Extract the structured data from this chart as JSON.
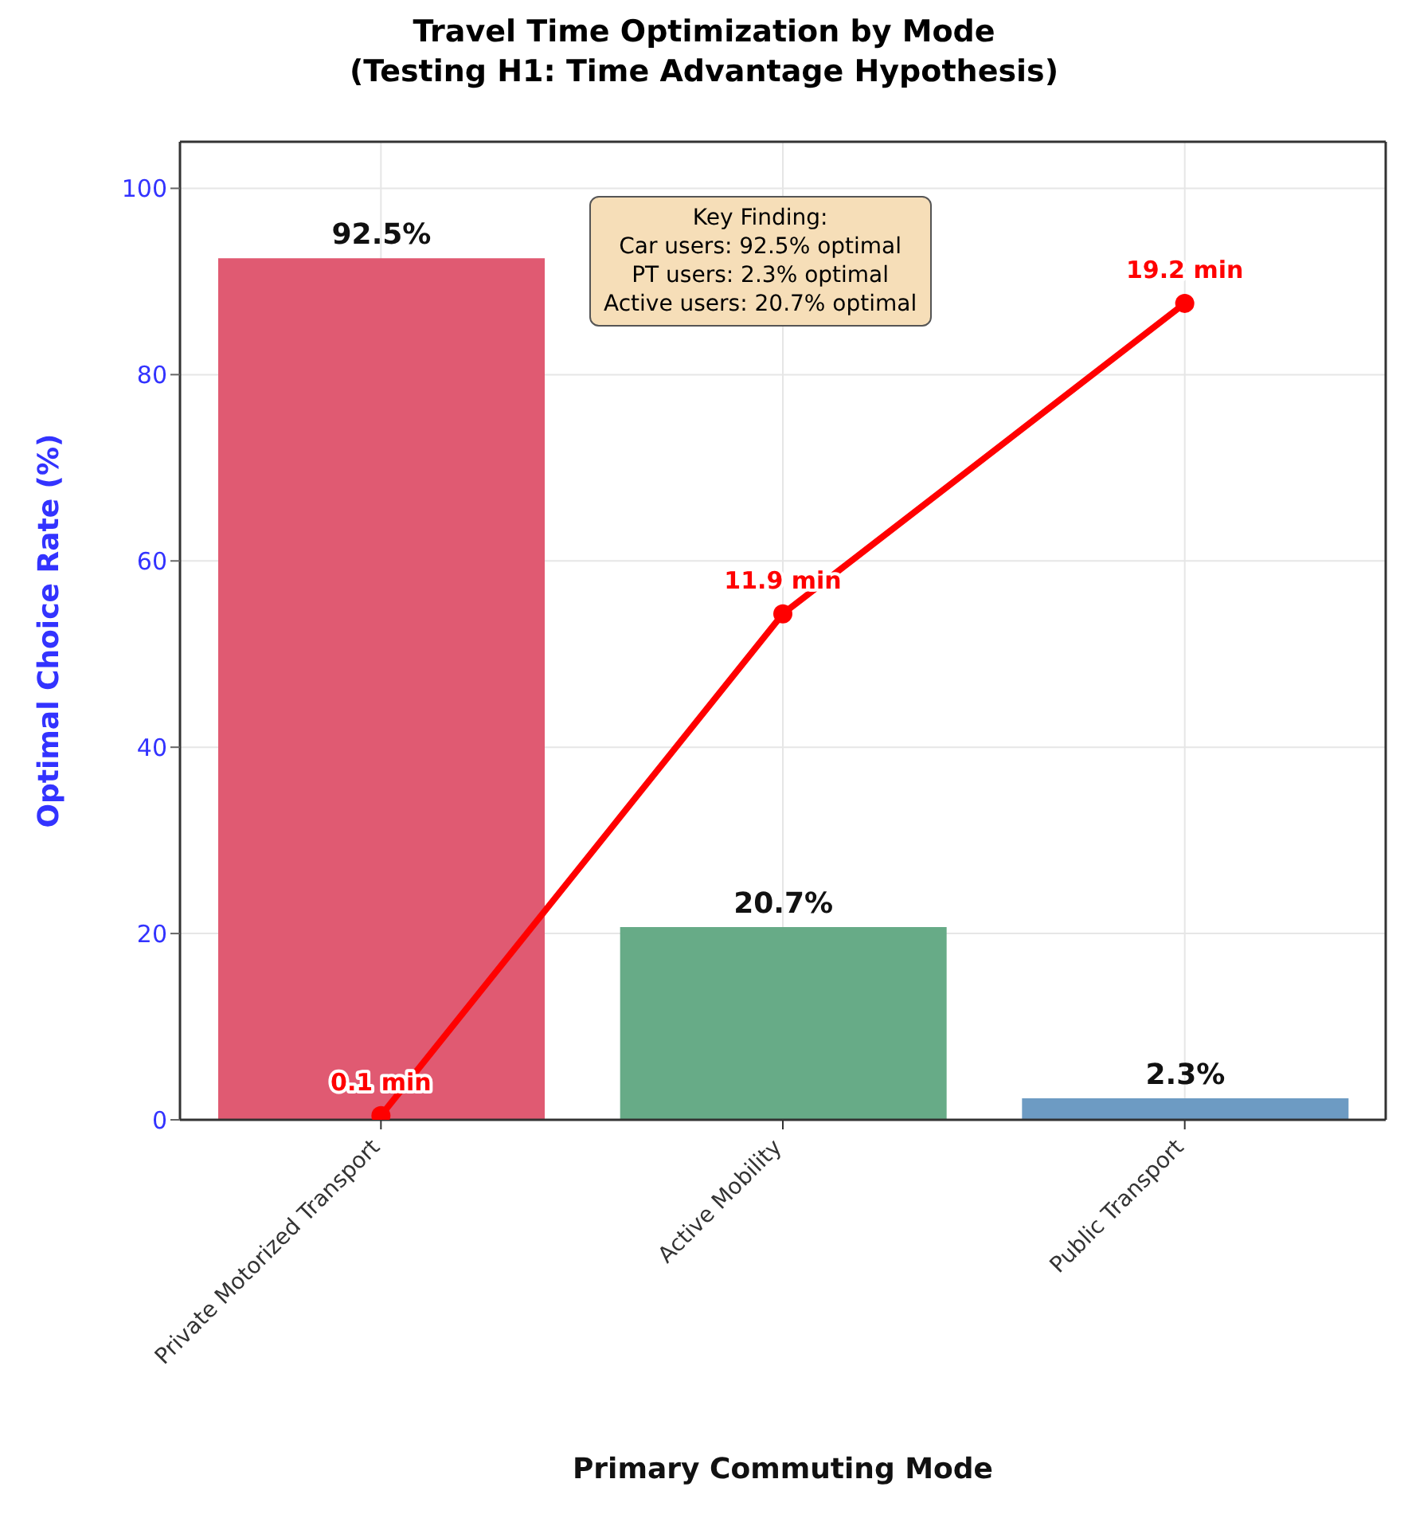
{
  "chart_data": {
    "type": "bar",
    "title": "Travel Time Optimization by Mode",
    "subtitle": "(Testing H1: Time Advantage Hypothesis)",
    "xlabel": "Primary Commuting Mode",
    "ylabel": "Optimal Choice Rate (%)",
    "categories": [
      "Private Motorized Transport",
      "Active Mobility",
      "Public Transport"
    ],
    "series": [
      {
        "colors": [
          "#e05a72",
          "#67ab87",
          "#6d9bc3"
        ],
        "values": [
          92.5,
          20.7,
          2.3
        ],
        "value_labels": [
          "92.5%",
          "20.7%",
          "2.3%"
        ]
      },
      {
        "type": "line",
        "axis": "y2",
        "color": "#ff0000",
        "values": [
          0.1,
          11.9,
          19.2
        ],
        "value_labels": [
          "0.1 min",
          "11.9 min",
          "19.2 min"
        ]
      }
    ],
    "ylim": [
      0,
      105
    ],
    "yticks": [
      0,
      20,
      40,
      60,
      80,
      100
    ],
    "y2lim": [
      0,
      23
    ],
    "grid": true,
    "legend": false,
    "marker": "circle",
    "line_style": "solid",
    "annotations": [
      "Key Finding:\nCar users: 92.5% optimal\nPT users: 2.3% optimal\nActive users: 20.7% optimal"
    ]
  }
}
